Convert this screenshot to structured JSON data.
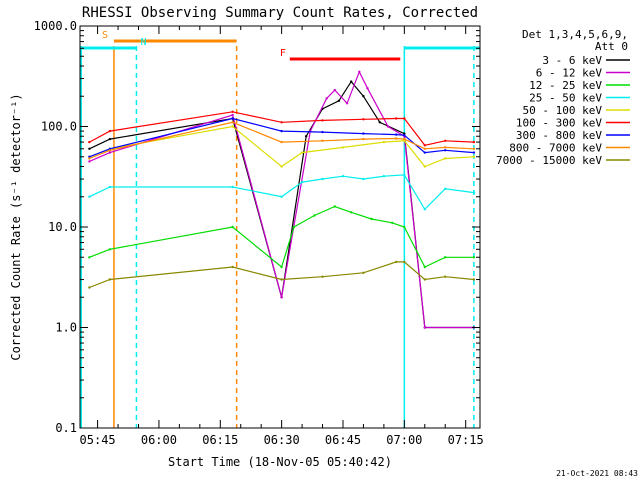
{
  "chart_data": {
    "type": "line",
    "title": "RHESSI Observing Summary Count Rates, Corrected",
    "xlabel": "Start Time (18-Nov-05 05:40:42)",
    "ylabel": "Corrected Count Rate (s⁻¹ detector⁻¹)",
    "yscale": "log",
    "ylim": [
      0.1,
      1000
    ],
    "xlim": [
      "05:40:42",
      "07:18:30"
    ],
    "y_ticks": [
      "0.1",
      "1.0",
      "10.0",
      "100.0",
      "1000.0"
    ],
    "x_ticks": [
      "05:45",
      "06:00",
      "06:15",
      "06:30",
      "06:45",
      "07:00",
      "07:15"
    ],
    "legend_title": [
      "Det 1,3,4,5,6,9,",
      "Att 0"
    ],
    "legend_position": "right",
    "footer": "21-Oct-2021 08:43",
    "series": [
      {
        "name": "3 - 6 keV",
        "color": "#000000",
        "points": [
          [
            "05:43",
            60
          ],
          [
            "05:48",
            75
          ],
          [
            "06:18",
            120
          ],
          [
            "06:30",
            2
          ],
          [
            "06:36",
            80
          ],
          [
            "06:40",
            150
          ],
          [
            "06:44",
            180
          ],
          [
            "06:47",
            280
          ],
          [
            "06:50",
            200
          ],
          [
            "06:54",
            110
          ],
          [
            "07:00",
            85
          ],
          [
            "07:05",
            1
          ],
          [
            "07:17",
            1
          ]
        ]
      },
      {
        "name": "6 - 12 keV",
        "color": "#cc00cc",
        "points": [
          [
            "05:43",
            45
          ],
          [
            "05:48",
            55
          ],
          [
            "06:18",
            130
          ],
          [
            "06:30",
            2
          ],
          [
            "06:37",
            90
          ],
          [
            "06:41",
            190
          ],
          [
            "06:43",
            230
          ],
          [
            "06:46",
            170
          ],
          [
            "06:49",
            350
          ],
          [
            "06:51",
            240
          ],
          [
            "06:56",
            100
          ],
          [
            "07:00",
            80
          ],
          [
            "07:05",
            1
          ],
          [
            "07:17",
            1
          ]
        ]
      },
      {
        "name": "12 - 25 keV",
        "color": "#00dd00",
        "points": [
          [
            "05:43",
            5
          ],
          [
            "05:48",
            6
          ],
          [
            "06:18",
            10
          ],
          [
            "06:30",
            4
          ],
          [
            "06:33",
            10
          ],
          [
            "06:38",
            13
          ],
          [
            "06:43",
            16
          ],
          [
            "06:47",
            14
          ],
          [
            "06:52",
            12
          ],
          [
            "06:57",
            11
          ],
          [
            "07:00",
            10
          ],
          [
            "07:05",
            4
          ],
          [
            "07:10",
            5
          ],
          [
            "07:17",
            5
          ]
        ]
      },
      {
        "name": "25 - 50 keV",
        "color": "#00eeee",
        "points": [
          [
            "05:43",
            20
          ],
          [
            "05:48",
            25
          ],
          [
            "06:18",
            25
          ],
          [
            "06:30",
            20
          ],
          [
            "06:35",
            28
          ],
          [
            "06:40",
            30
          ],
          [
            "06:45",
            32
          ],
          [
            "06:50",
            30
          ],
          [
            "06:55",
            32
          ],
          [
            "07:00",
            33
          ],
          [
            "07:05",
            15
          ],
          [
            "07:10",
            24
          ],
          [
            "07:17",
            22
          ]
        ]
      },
      {
        "name": "50 - 100 keV",
        "color": "#dddd00",
        "points": [
          [
            "05:43",
            50
          ],
          [
            "05:48",
            60
          ],
          [
            "06:18",
            100
          ],
          [
            "06:30",
            40
          ],
          [
            "06:35",
            55
          ],
          [
            "06:45",
            62
          ],
          [
            "06:55",
            70
          ],
          [
            "07:00",
            72
          ],
          [
            "07:05",
            40
          ],
          [
            "07:10",
            48
          ],
          [
            "07:17",
            50
          ]
        ]
      },
      {
        "name": "100 - 300 keV",
        "color": "#ff0000",
        "points": [
          [
            "05:43",
            70
          ],
          [
            "05:48",
            90
          ],
          [
            "06:18",
            140
          ],
          [
            "06:30",
            110
          ],
          [
            "06:40",
            115
          ],
          [
            "06:50",
            118
          ],
          [
            "06:58",
            120
          ],
          [
            "07:00",
            120
          ],
          [
            "07:05",
            65
          ],
          [
            "07:10",
            72
          ],
          [
            "07:17",
            70
          ]
        ]
      },
      {
        "name": "300 - 800 keV",
        "color": "#0000ff",
        "points": [
          [
            "05:43",
            50
          ],
          [
            "05:48",
            60
          ],
          [
            "06:18",
            120
          ],
          [
            "06:30",
            90
          ],
          [
            "06:40",
            88
          ],
          [
            "06:50",
            85
          ],
          [
            "06:58",
            83
          ],
          [
            "07:00",
            82
          ],
          [
            "07:05",
            55
          ],
          [
            "07:10",
            58
          ],
          [
            "07:17",
            55
          ]
        ]
      },
      {
        "name": "800 - 7000 keV",
        "color": "#ff8800",
        "points": [
          [
            "05:43",
            48
          ],
          [
            "05:48",
            58
          ],
          [
            "06:18",
            110
          ],
          [
            "06:30",
            70
          ],
          [
            "06:40",
            72
          ],
          [
            "06:50",
            75
          ],
          [
            "06:58",
            76
          ],
          [
            "07:00",
            75
          ],
          [
            "07:05",
            60
          ],
          [
            "07:10",
            62
          ],
          [
            "07:17",
            60
          ]
        ]
      },
      {
        "name": "7000 - 15000 keV",
        "color": "#888800",
        "points": [
          [
            "05:43",
            2.5
          ],
          [
            "05:48",
            3
          ],
          [
            "06:18",
            4
          ],
          [
            "06:30",
            3
          ],
          [
            "06:40",
            3.2
          ],
          [
            "06:50",
            3.5
          ],
          [
            "06:58",
            4.5
          ],
          [
            "07:00",
            4.5
          ],
          [
            "07:05",
            3
          ],
          [
            "07:10",
            3.2
          ],
          [
            "07:17",
            3
          ]
        ]
      }
    ],
    "markers": [
      {
        "label": "S",
        "color": "#ff8800",
        "start": "05:49",
        "end": "06:19"
      },
      {
        "label": "N",
        "color": "#00eeee",
        "start": "05:40:42",
        "end": "05:54:30"
      },
      {
        "label": "N",
        "color": "#00eeee",
        "start": "07:00",
        "end": "07:18:30"
      },
      {
        "label": "F",
        "color": "#ff0000",
        "start": "06:32",
        "end": "06:59"
      }
    ],
    "vlines": [
      {
        "t": "05:41",
        "color": "#00eeee",
        "style": "solid"
      },
      {
        "t": "05:49",
        "color": "#ff8800",
        "style": "solid"
      },
      {
        "t": "05:54:30",
        "color": "#00eeee",
        "style": "dashed"
      },
      {
        "t": "06:19",
        "color": "#ff8800",
        "style": "dashed"
      },
      {
        "t": "07:00",
        "color": "#00eeee",
        "style": "solid"
      },
      {
        "t": "07:17",
        "color": "#00eeee",
        "style": "dashed"
      }
    ]
  }
}
